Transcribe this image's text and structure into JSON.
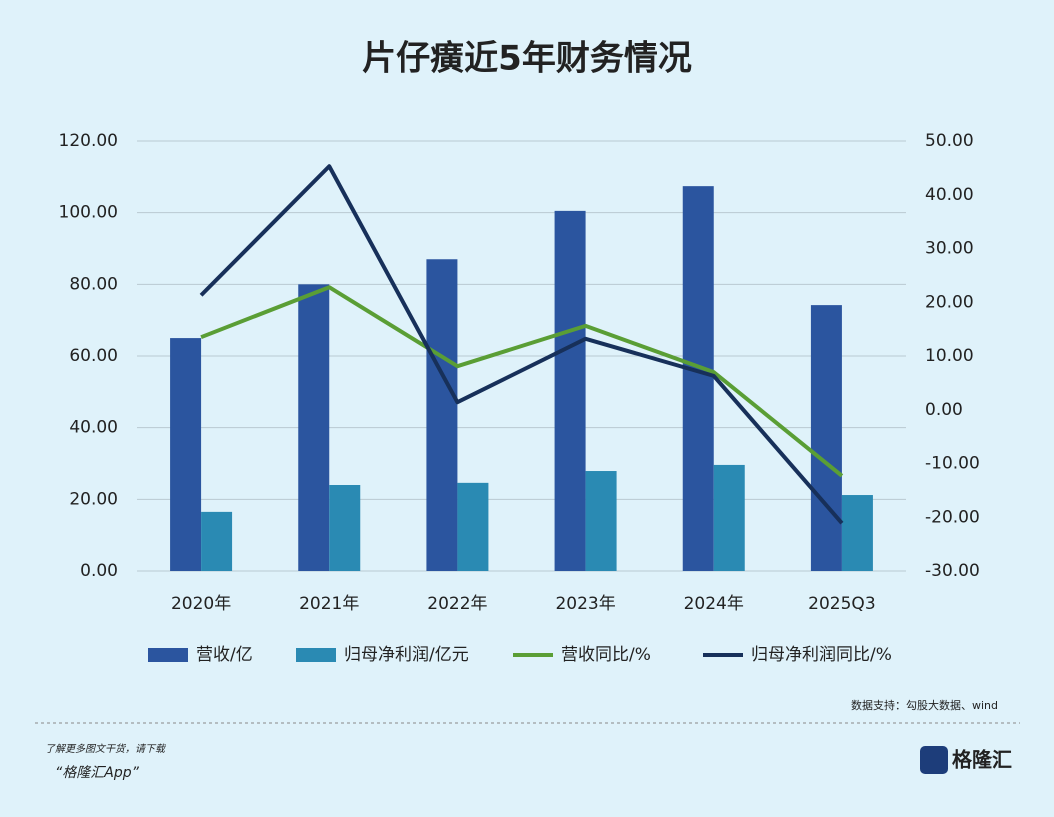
{
  "chart_data": {
    "type": "bar",
    "title": "片仔癀近5年财务情况",
    "categories": [
      "2020年",
      "2021年",
      "2022年",
      "2023年",
      "2024年",
      "2025Q3"
    ],
    "series": [
      {
        "name": "营收/亿",
        "type": "bar",
        "color": "#2b559f",
        "values": [
          65.0,
          80.0,
          87.0,
          100.5,
          107.4,
          74.2
        ]
      },
      {
        "name": "归母净利润/亿元",
        "type": "bar",
        "color": "#2a8ab3",
        "values": [
          16.5,
          24.0,
          24.6,
          27.9,
          29.6,
          21.2
        ]
      },
      {
        "name": "营收同比/%",
        "type": "line",
        "axis": "y2",
        "color": "#5a9e35",
        "values": [
          13.5,
          22.8,
          8.1,
          15.6,
          7.0,
          -12.3
        ]
      },
      {
        "name": "归母净利润同比/%",
        "type": "line",
        "axis": "y2",
        "color": "#17305a",
        "values": [
          21.3,
          45.3,
          1.4,
          13.2,
          6.3,
          -21.1
        ]
      }
    ],
    "ylim": [
      0,
      120
    ],
    "yticks": [
      {
        "value": 0,
        "label": "0.00"
      },
      {
        "value": 20,
        "label": "20.00"
      },
      {
        "value": 40,
        "label": "40.00"
      },
      {
        "value": 60,
        "label": "60.00"
      },
      {
        "value": 80,
        "label": "80.00"
      },
      {
        "value": 100,
        "label": "100.00"
      },
      {
        "value": 120,
        "label": "120.00"
      }
    ],
    "y2lim": [
      -30,
      50
    ],
    "y2ticks": [
      {
        "value": -30,
        "label": "-30.00"
      },
      {
        "value": -20,
        "label": "-20.00"
      },
      {
        "value": -10,
        "label": "-10.00"
      },
      {
        "value": 0,
        "label": "0.00"
      },
      {
        "value": 10,
        "label": "10.00"
      },
      {
        "value": 20,
        "label": "20.00"
      },
      {
        "value": 30,
        "label": "30.00"
      },
      {
        "value": 40,
        "label": "40.00"
      },
      {
        "value": 50,
        "label": "50.00"
      }
    ],
    "grid": true
  },
  "footer": {
    "source": "数据支持：勾股大数据、wind",
    "promo": "了解更多图文干货，请下载",
    "app": "“格隆汇App”",
    "logo": "格隆汇"
  }
}
